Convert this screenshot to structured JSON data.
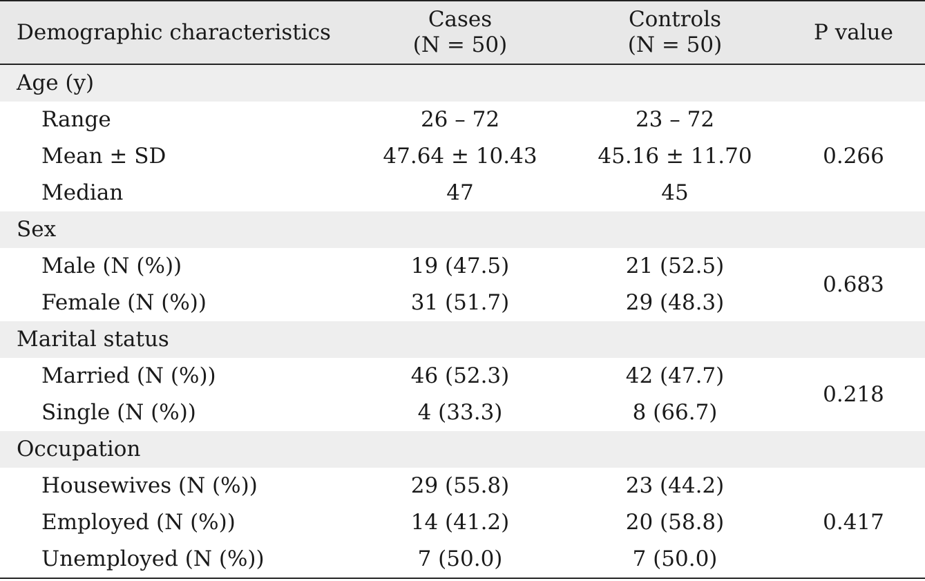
{
  "header": {
    "col1": "Demographic characteristics",
    "col2_line1": "Cases",
    "col2_line2": "(N = 50)",
    "col3_line1": "Controls",
    "col3_line2": "(N = 50)",
    "col4": "P value"
  },
  "groups": [
    {
      "label": "Age (y)",
      "rows": [
        {
          "label": "Range",
          "cases": "26 – 72",
          "controls": "23 – 72"
        },
        {
          "label": "Mean ± SD",
          "cases": "47.64 ± 10.43",
          "controls": "45.16 ± 11.70"
        },
        {
          "label": "Median",
          "cases": "47",
          "controls": "45"
        }
      ],
      "p_value": "0.266"
    },
    {
      "label": "Sex",
      "rows": [
        {
          "label": "Male (N (%))",
          "cases": "19 (47.5)",
          "controls": "21 (52.5)"
        },
        {
          "label": "Female (N (%))",
          "cases": "31 (51.7)",
          "controls": "29 (48.3)"
        }
      ],
      "p_value": "0.683"
    },
    {
      "label": "Marital status",
      "rows": [
        {
          "label": "Married (N (%))",
          "cases": "46 (52.3)",
          "controls": "42 (47.7)"
        },
        {
          "label": "Single (N (%))",
          "cases": "4 (33.3)",
          "controls": "8 (66.7)"
        }
      ],
      "p_value": "0.218"
    },
    {
      "label": "Occupation",
      "rows": [
        {
          "label": "Housewives (N (%))",
          "cases": "29 (55.8)",
          "controls": "23 (44.2)"
        },
        {
          "label": "Employed (N (%))",
          "cases": "14 (41.2)",
          "controls": "20 (58.8)"
        },
        {
          "label": "Unemployed (N (%))",
          "cases": "7 (50.0)",
          "controls": "7 (50.0)"
        }
      ],
      "p_value": "0.417"
    }
  ]
}
